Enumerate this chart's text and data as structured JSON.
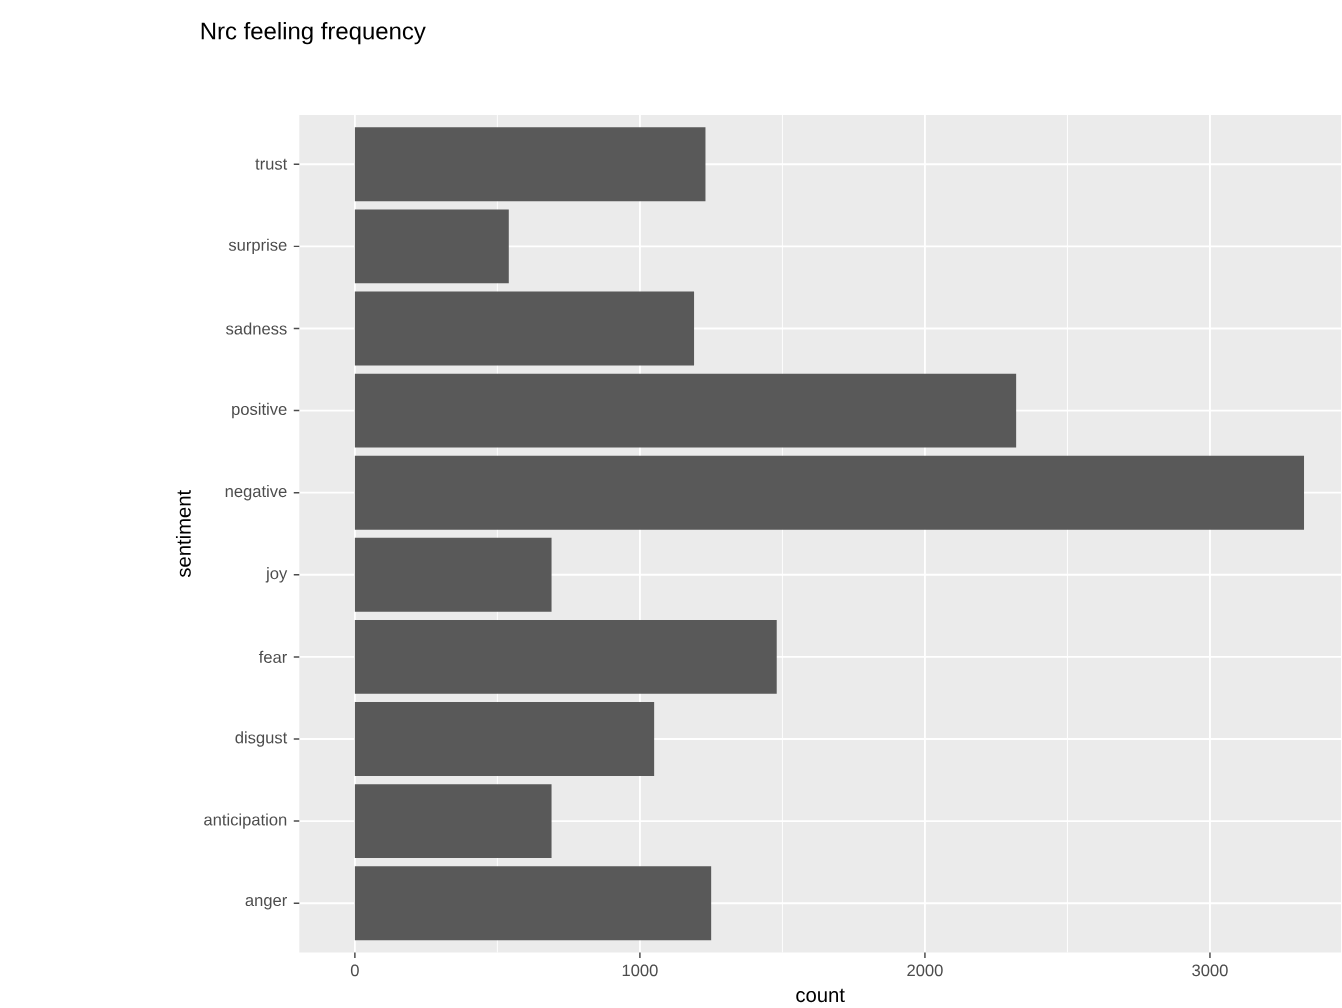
{
  "chart_data": {
    "type": "bar",
    "orientation": "horizontal",
    "title": "Nrc feeling frequency",
    "xlabel": "count",
    "ylabel": "sentiment",
    "categories": [
      "trust",
      "surprise",
      "sadness",
      "positive",
      "negative",
      "joy",
      "fear",
      "disgust",
      "anticipation",
      "anger"
    ],
    "values": [
      1230,
      540,
      1190,
      2320,
      3330,
      690,
      1480,
      1050,
      690,
      1250
    ],
    "color": "#595959",
    "xlim": [
      -195,
      3460
    ],
    "xticks": [
      0,
      1000,
      2000,
      3000
    ],
    "grid": true
  }
}
